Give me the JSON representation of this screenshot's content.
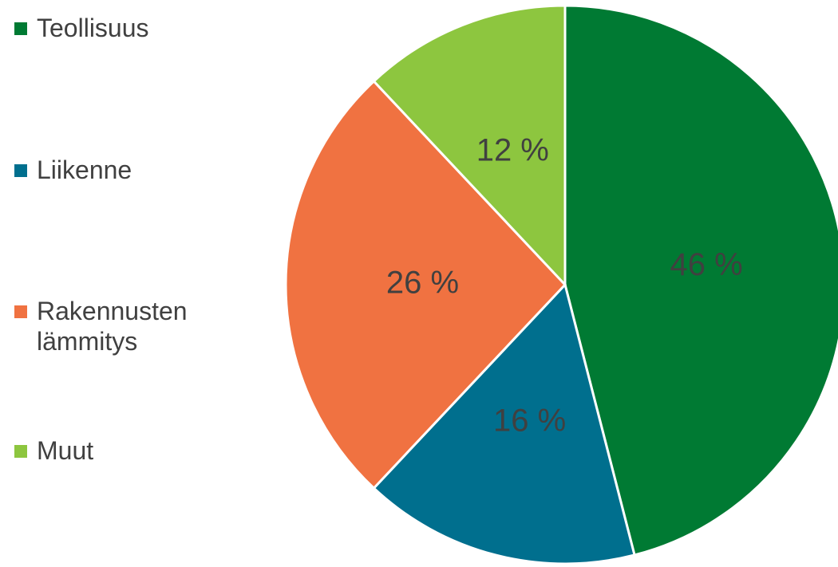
{
  "chart_data": {
    "type": "pie",
    "categories": [
      "Teollisuus",
      "Liikenne",
      "Rakennusten lämmitys",
      "Muut"
    ],
    "values": [
      46,
      16,
      26,
      12
    ],
    "value_labels": [
      "46 %",
      "16 %",
      "26 %",
      "12 %"
    ],
    "colors": [
      "#007a33",
      "#006f8e",
      "#f07241",
      "#8dc63f"
    ],
    "legend": "left"
  }
}
